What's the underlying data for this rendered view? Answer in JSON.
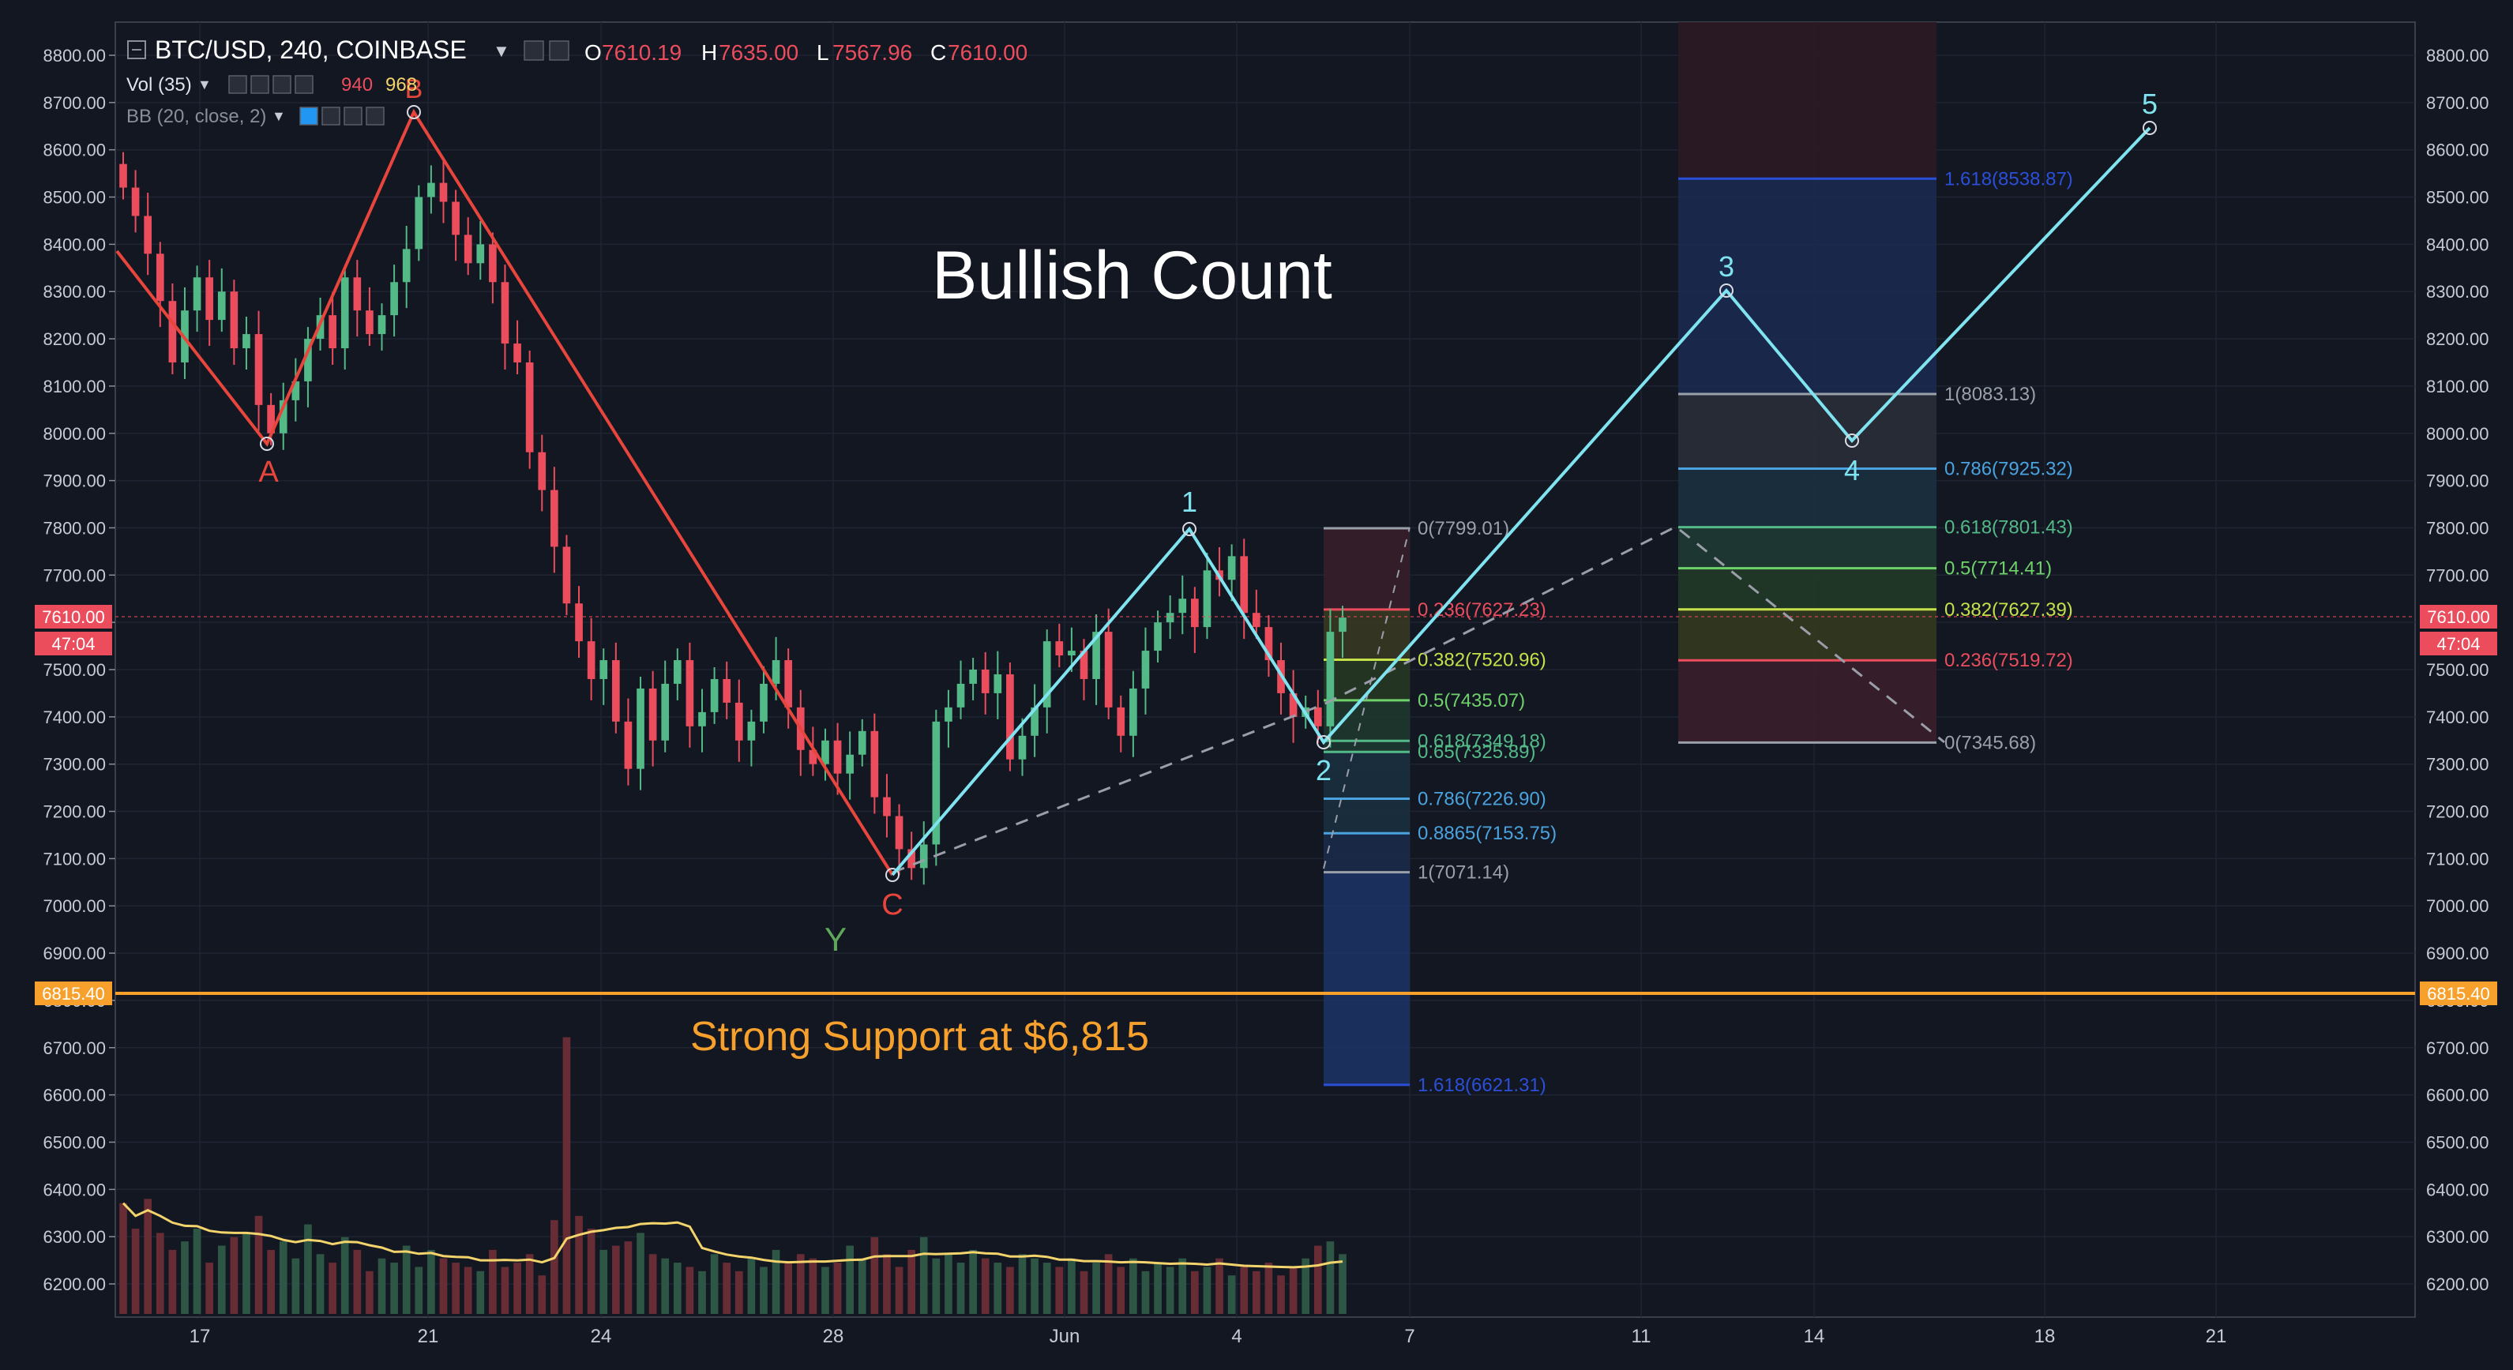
{
  "header": {
    "symbol": "BTC/USD, 240, COINBASE",
    "o_label": "O",
    "o_value": "7610.19",
    "h_label": "H",
    "h_value": "7635.00",
    "l_label": "L",
    "l_value": "7567.96",
    "c_label": "C",
    "c_value": "7610.00",
    "vol_label": "Vol (35)",
    "vol_value1": "940",
    "vol_value2": "968",
    "bb_label": "BB (20, close, 2)"
  },
  "price_badges": {
    "last_price": "7610.00",
    "countdown": "47:04",
    "support_price": "6815.40"
  },
  "annotations": {
    "title": "Bullish Count",
    "support_text": "Strong Support at $6,815",
    "wave_labels_red": [
      "A",
      "B",
      "C"
    ],
    "wave_label_green": "Y",
    "wave_labels_cyan": [
      "1",
      "2",
      "3",
      "4",
      "5"
    ]
  },
  "colors": {
    "background": "#131722",
    "grid": "#1f2433",
    "up_candle": "#53b987",
    "down_candle": "#eb4d5c",
    "correction_line": "#e8453c",
    "impulse_line": "#7fe3f0",
    "support_line": "#f7a12c",
    "ma_line": "#f3d36b",
    "axis_text": "#c8cbd3"
  },
  "chart_data": {
    "type": "candlestick",
    "y_axis": {
      "ylim": [
        6140,
        8850
      ],
      "ticks": [
        "8800.00",
        "8700.00",
        "8600.00",
        "8500.00",
        "8400.00",
        "8300.00",
        "8200.00",
        "8100.00",
        "8000.00",
        "7900.00",
        "7800.00",
        "7700.00",
        "7600.00",
        "7500.00",
        "7400.00",
        "7300.00",
        "7200.00",
        "7100.00",
        "7000.00",
        "6900.00",
        "6800.00",
        "6700.00",
        "6600.00",
        "6500.00",
        "6400.00",
        "6300.00",
        "6200.00"
      ]
    },
    "x_axis": {
      "ticks": [
        "17",
        "21",
        "24",
        "28",
        "Jun",
        "4",
        "7",
        "11",
        "14",
        "18",
        "21"
      ]
    },
    "wave_points": {
      "A": 7980,
      "B": 8680,
      "C": 7065,
      "w1": 7799,
      "w2": 7345,
      "w3": 8300,
      "w4": 7985,
      "w5": 8640
    },
    "support_level": 6815.4,
    "fib_retracement": [
      {
        "label": "0(7799.01)",
        "value": 7799.01
      },
      {
        "label": "0.236(7627.23)",
        "value": 7627.23
      },
      {
        "label": "0.382(7520.96)",
        "value": 7520.96
      },
      {
        "label": "0.5(7435.07)",
        "value": 7435.07
      },
      {
        "label": "0.618(7349.18)",
        "value": 7349.18
      },
      {
        "label": "0.65(7325.89)",
        "value": 7325.89
      },
      {
        "label": "0.786(7226.90)",
        "value": 7226.9
      },
      {
        "label": "0.8865(7153.75)",
        "value": 7153.75
      },
      {
        "label": "1(7071.14)",
        "value": 7071.14
      },
      {
        "label": "1.618(6621.31)",
        "value": 6621.31
      }
    ],
    "fib_extension": [
      {
        "label": "1.618(8538.87)",
        "value": 8538.87
      },
      {
        "label": "1(8083.13)",
        "value": 8083.13
      },
      {
        "label": "0.786(7925.32)",
        "value": 7925.32
      },
      {
        "label": "0.618(7801.43)",
        "value": 7801.43
      },
      {
        "label": "0.5(7714.41)",
        "value": 7714.41
      },
      {
        "label": "0.382(7627.39)",
        "value": 7627.39
      },
      {
        "label": "0.236(7519.72)",
        "value": 7519.72
      },
      {
        "label": "0(7345.68)",
        "value": 7345.68
      }
    ],
    "candles_close": [
      8520,
      8460,
      8380,
      8280,
      8150,
      8260,
      8330,
      8240,
      8300,
      8180,
      8210,
      8060,
      8000,
      8070,
      8110,
      8200,
      8250,
      8180,
      8330,
      8260,
      8210,
      8250,
      8320,
      8390,
      8500,
      8530,
      8490,
      8420,
      8360,
      8400,
      8320,
      8190,
      8150,
      7960,
      7880,
      7760,
      7640,
      7560,
      7480,
      7520,
      7390,
      7290,
      7460,
      7350,
      7470,
      7520,
      7380,
      7410,
      7480,
      7430,
      7350,
      7390,
      7470,
      7520,
      7420,
      7330,
      7300,
      7350,
      7280,
      7320,
      7370,
      7230,
      7190,
      7120,
      7080,
      7130,
      7390,
      7420,
      7470,
      7500,
      7450,
      7490,
      7310,
      7360,
      7420,
      7560,
      7530,
      7540,
      7480,
      7580,
      7420,
      7360,
      7460,
      7540,
      7600,
      7620,
      7650,
      7590,
      7710,
      7690,
      7740,
      7620,
      7590,
      7520,
      7450,
      7400,
      7420,
      7380,
      7580,
      7610
    ],
    "volume_index": [
      4900,
      4300,
      5000,
      4200,
      3800,
      4000,
      4300,
      3500,
      3900,
      4100,
      4200,
      4600,
      3800,
      4000,
      3600,
      4400,
      3700,
      3500,
      4100,
      3800,
      3300,
      3600,
      3500,
      3900,
      3400,
      3800,
      3600,
      3500,
      3400,
      3300,
      3800,
      3400,
      3500,
      3700,
      3200,
      4500,
      8800,
      4600,
      4300,
      3800,
      3900,
      4000,
      4200,
      3700,
      3600,
      3500,
      3400,
      3300,
      3700,
      3500,
      3300,
      3600,
      3400,
      3800,
      3500,
      3700,
      3600,
      3400,
      3500,
      3900,
      3600,
      4100,
      3700,
      3400,
      3800,
      4100,
      3600,
      3700,
      3500,
      3800,
      3600,
      3500,
      3400,
      3700,
      3600,
      3500,
      3400,
      3600,
      3300,
      3500,
      3700,
      3400,
      3600,
      3300,
      3500,
      3400,
      3600,
      3300,
      3400,
      3600,
      3200,
      3400,
      3300,
      3500,
      3200,
      3400,
      3600,
      3900,
      4000,
      3700
    ]
  }
}
